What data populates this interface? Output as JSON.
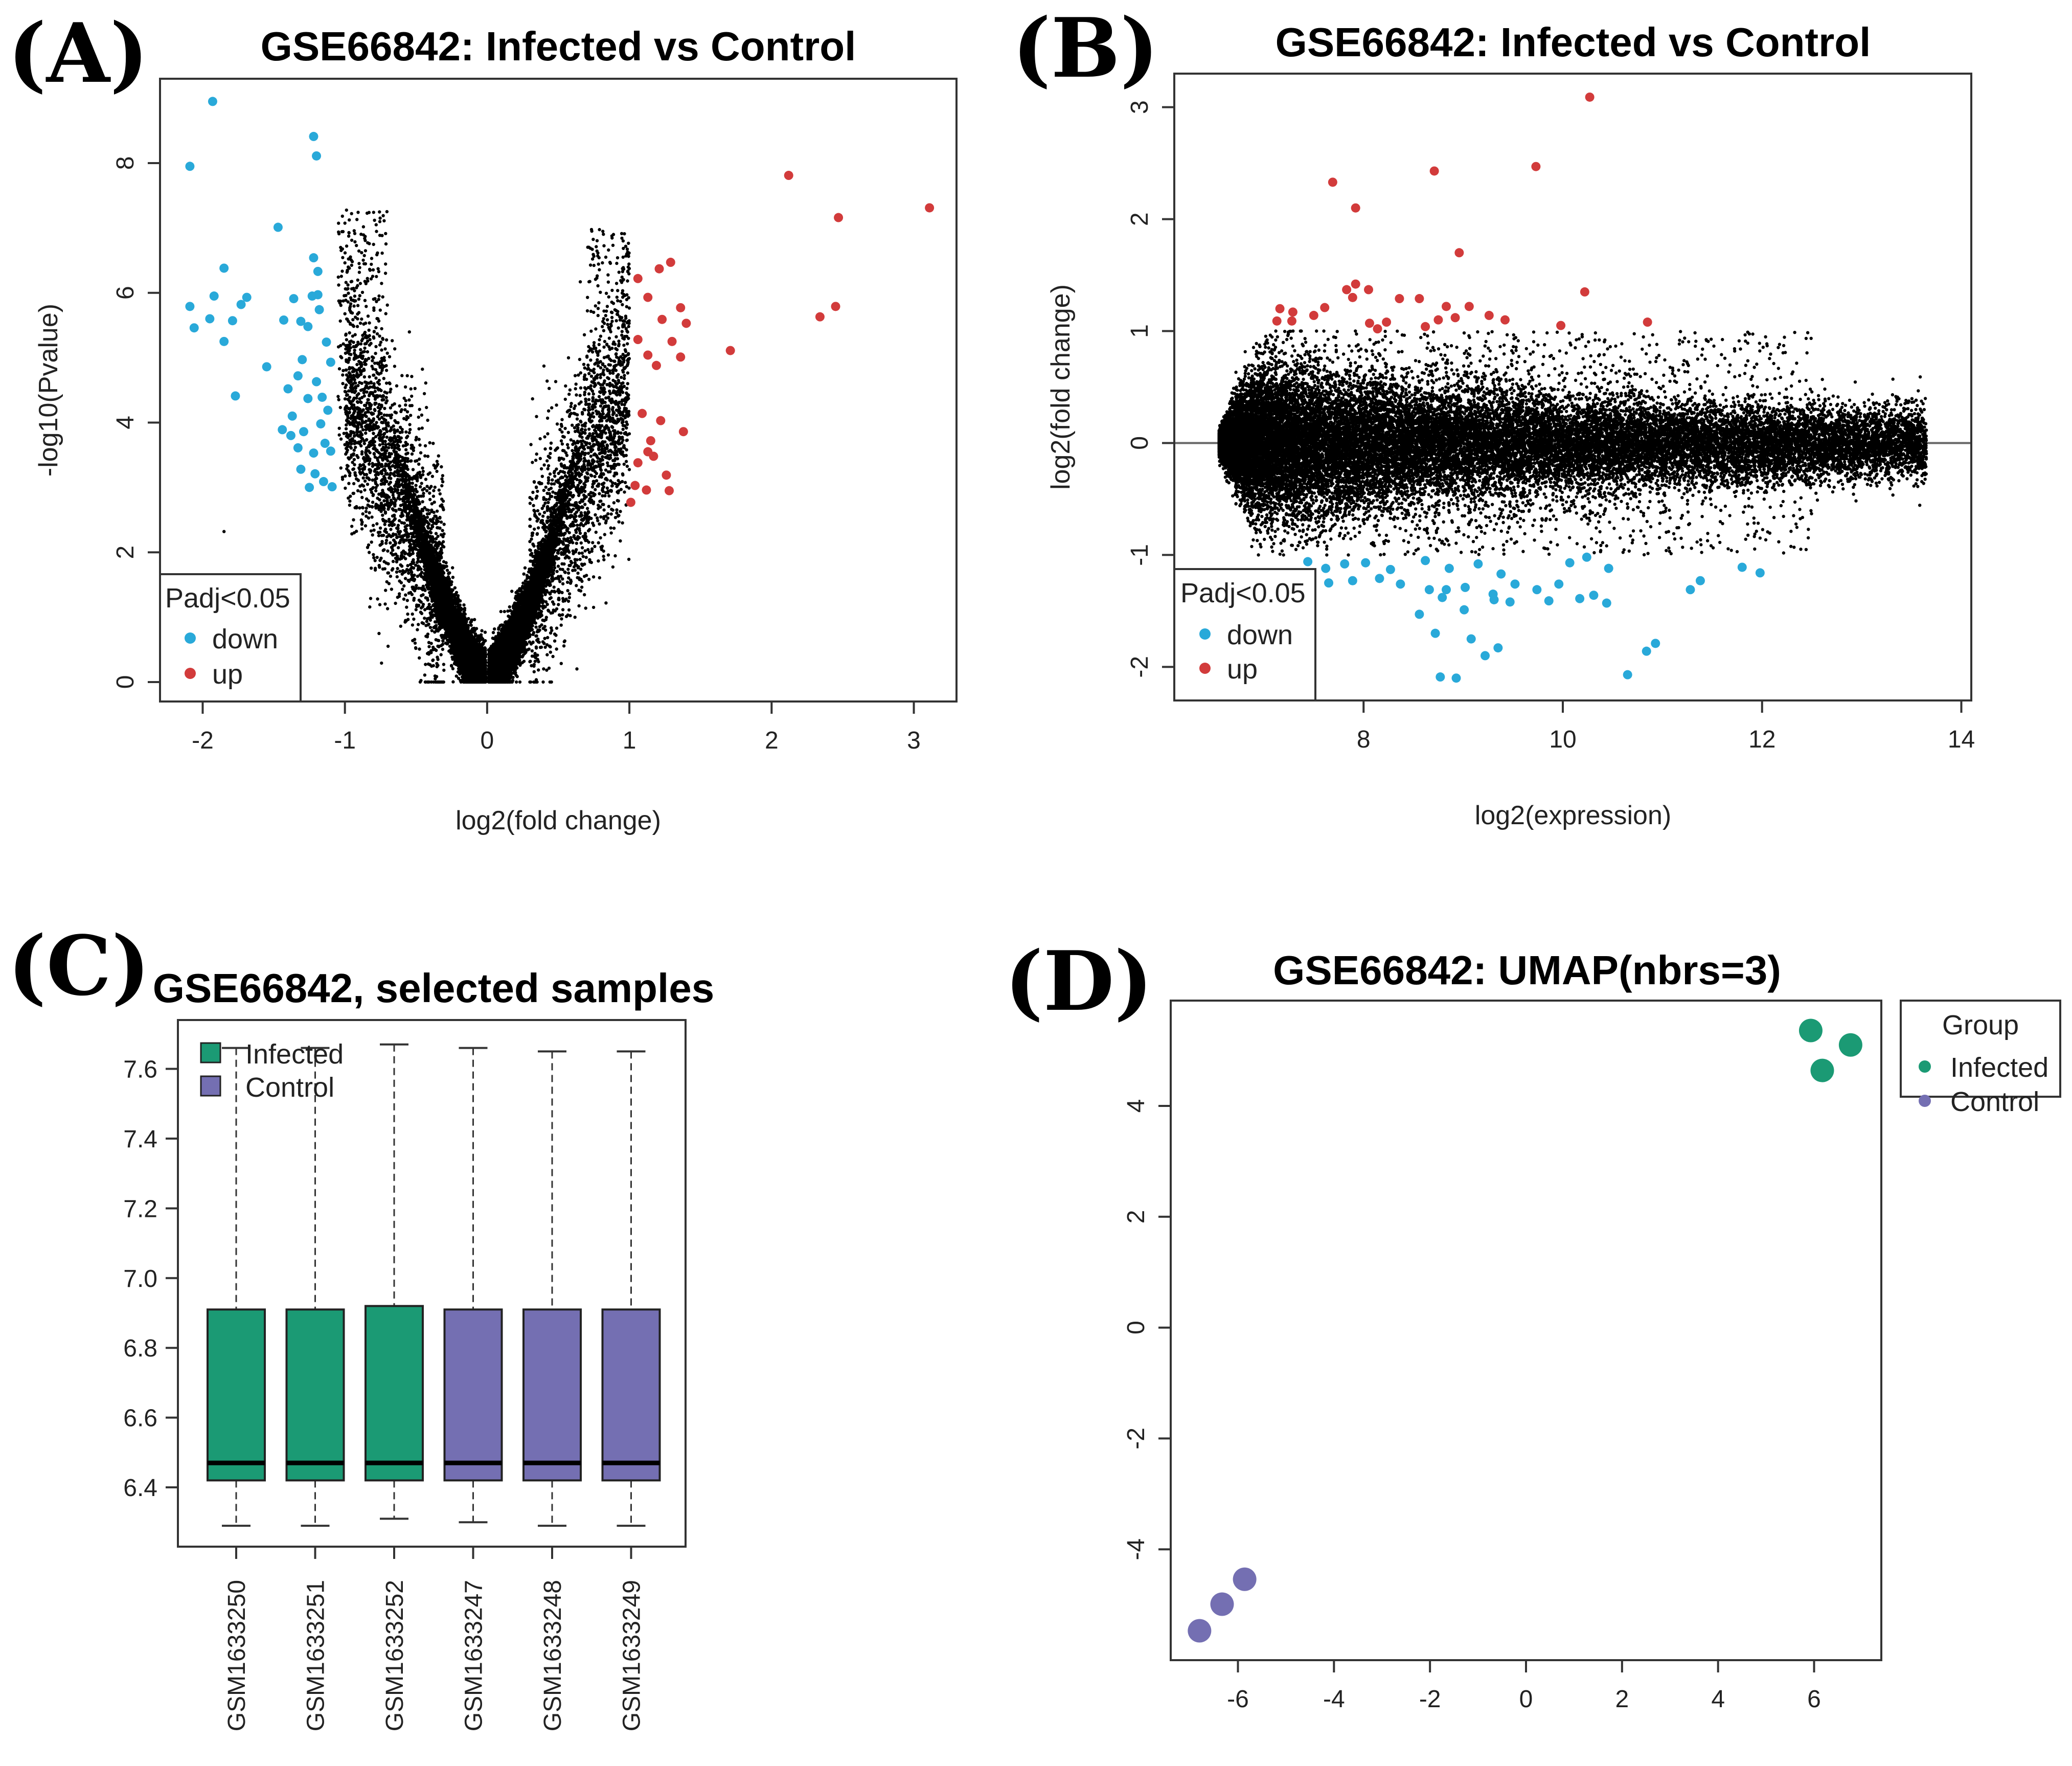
{
  "colors": {
    "down": "#29a9d9",
    "up": "#d23b3b",
    "neutral": "#000000",
    "infected": "#1b9a74",
    "control": "#746fb2"
  },
  "chart_data": [
    {
      "id": "A",
      "panel_label": "(A)",
      "type": "scatter",
      "subtype": "volcano",
      "title": "GSE66842: Infected vs Control",
      "xlabel": "log2(fold change)",
      "ylabel": "-log10(Pvalue)",
      "xlim": [
        -2.3,
        3.3
      ],
      "ylim": [
        -0.3,
        9.3
      ],
      "xticks": [
        -2,
        -1,
        0,
        1,
        2,
        3
      ],
      "yticks": [
        0,
        2,
        4,
        6,
        8
      ],
      "legend": {
        "title": "Padj<0.05",
        "entries": [
          "down",
          "up"
        ],
        "position": "bottom-left"
      },
      "series": [
        {
          "name": "down",
          "color_key": "down",
          "points": [
            [
              -1.93,
              8.95
            ],
            [
              -2.09,
              7.95
            ],
            [
              -1.22,
              8.41
            ],
            [
              -1.2,
              8.11
            ],
            [
              -1.47,
              7.01
            ],
            [
              -1.22,
              6.54
            ],
            [
              -1.19,
              6.33
            ],
            [
              -1.85,
              6.38
            ],
            [
              -1.92,
              5.95
            ],
            [
              -1.69,
              5.93
            ],
            [
              -1.95,
              5.6
            ],
            [
              -1.79,
              5.57
            ],
            [
              -2.09,
              5.79
            ],
            [
              -2.06,
              5.46
            ],
            [
              -1.73,
              5.82
            ],
            [
              -1.85,
              5.25
            ],
            [
              -1.77,
              4.41
            ],
            [
              -1.55,
              4.86
            ],
            [
              -1.43,
              5.58
            ],
            [
              -1.36,
              5.91
            ],
            [
              -1.31,
              5.56
            ],
            [
              -1.26,
              5.48
            ],
            [
              -1.23,
              5.95
            ],
            [
              -1.18,
              5.74
            ],
            [
              -1.13,
              5.24
            ],
            [
              -1.1,
              4.93
            ],
            [
              -1.4,
              4.52
            ],
            [
              -1.33,
              4.72
            ],
            [
              -1.3,
              4.97
            ],
            [
              -1.26,
              4.37
            ],
            [
              -1.2,
              4.63
            ],
            [
              -1.16,
              4.39
            ],
            [
              -1.12,
              4.19
            ],
            [
              -1.44,
              3.89
            ],
            [
              -1.38,
              3.8
            ],
            [
              -1.33,
              3.61
            ],
            [
              -1.29,
              3.86
            ],
            [
              -1.22,
              3.53
            ],
            [
              -1.17,
              3.98
            ],
            [
              -1.14,
              3.68
            ],
            [
              -1.1,
              3.56
            ],
            [
              -1.31,
              3.28
            ],
            [
              -1.21,
              3.21
            ],
            [
              -1.15,
              3.09
            ],
            [
              -1.09,
              3.01
            ],
            [
              -1.25,
              3.0
            ],
            [
              -1.19,
              5.97
            ],
            [
              -1.37,
              4.1
            ]
          ]
        },
        {
          "name": "up",
          "color_key": "up",
          "points": [
            [
              2.12,
              7.81
            ],
            [
              2.47,
              7.16
            ],
            [
              3.11,
              7.31
            ],
            [
              2.45,
              5.79
            ],
            [
              2.34,
              5.63
            ],
            [
              1.71,
              5.11
            ],
            [
              1.36,
              5.77
            ],
            [
              1.29,
              6.47
            ],
            [
              1.21,
              6.37
            ],
            [
              1.06,
              6.22
            ],
            [
              1.13,
              5.93
            ],
            [
              1.23,
              5.59
            ],
            [
              1.4,
              5.53
            ],
            [
              1.06,
              5.28
            ],
            [
              1.13,
              5.04
            ],
            [
              1.3,
              5.25
            ],
            [
              1.36,
              5.01
            ],
            [
              1.19,
              4.88
            ],
            [
              1.09,
              4.14
            ],
            [
              1.22,
              4.03
            ],
            [
              1.38,
              3.86
            ],
            [
              1.13,
              3.55
            ],
            [
              1.06,
              3.38
            ],
            [
              1.17,
              3.48
            ],
            [
              1.26,
              3.19
            ],
            [
              1.04,
              3.03
            ],
            [
              1.12,
              2.96
            ],
            [
              1.01,
              2.77
            ],
            [
              1.28,
              2.95
            ],
            [
              1.15,
              3.72
            ]
          ]
        }
      ]
    },
    {
      "id": "B",
      "panel_label": "(B)",
      "type": "scatter",
      "subtype": "MA plot",
      "title": "GSE66842: Infected vs Control",
      "xlabel": "log2(expression)",
      "ylabel": "log2(fold change)",
      "xlim": [
        6.1,
        14.1
      ],
      "ylim": [
        -2.3,
        3.3
      ],
      "xticks": [
        8,
        10,
        12,
        14
      ],
      "yticks": [
        -2,
        -1,
        0,
        1,
        2,
        3
      ],
      "hline": 0,
      "legend": {
        "title": "Padj<0.05",
        "entries": [
          "down",
          "up"
        ],
        "position": "bottom-left"
      },
      "series": [
        {
          "name": "up",
          "color_key": "up",
          "points": [
            [
              10.27,
              3.09
            ],
            [
              9.73,
              2.47
            ],
            [
              8.71,
              2.43
            ],
            [
              7.69,
              2.33
            ],
            [
              7.92,
              2.1
            ],
            [
              8.96,
              1.7
            ],
            [
              10.22,
              1.35
            ],
            [
              7.83,
              1.37
            ],
            [
              7.92,
              1.42
            ],
            [
              8.05,
              1.37
            ],
            [
              7.16,
              1.2
            ],
            [
              7.29,
              1.17
            ],
            [
              7.61,
              1.21
            ],
            [
              7.89,
              1.3
            ],
            [
              8.36,
              1.29
            ],
            [
              8.56,
              1.29
            ],
            [
              8.83,
              1.22
            ],
            [
              9.06,
              1.22
            ],
            [
              7.13,
              1.09
            ],
            [
              7.28,
              1.09
            ],
            [
              7.5,
              1.14
            ],
            [
              8.06,
              1.07
            ],
            [
              8.14,
              1.02
            ],
            [
              8.23,
              1.08
            ],
            [
              8.62,
              1.04
            ],
            [
              8.75,
              1.1
            ],
            [
              8.92,
              1.12
            ],
            [
              9.26,
              1.14
            ],
            [
              9.42,
              1.1
            ],
            [
              9.98,
              1.05
            ],
            [
              10.85,
              1.08
            ]
          ]
        },
        {
          "name": "down",
          "color_key": "down",
          "points": [
            [
              10.65,
              -2.07
            ],
            [
              8.77,
              -2.09
            ],
            [
              8.93,
              -2.1
            ],
            [
              10.84,
              -1.86
            ],
            [
              10.93,
              -1.79
            ],
            [
              9.22,
              -1.9
            ],
            [
              9.35,
              -1.83
            ],
            [
              9.08,
              -1.75
            ],
            [
              8.72,
              -1.7
            ],
            [
              8.56,
              -1.53
            ],
            [
              9.01,
              -1.49
            ],
            [
              9.47,
              -1.42
            ],
            [
              9.86,
              -1.41
            ],
            [
              10.17,
              -1.39
            ],
            [
              10.44,
              -1.43
            ],
            [
              11.28,
              -1.31
            ],
            [
              11.38,
              -1.23
            ],
            [
              11.8,
              -1.11
            ],
            [
              11.98,
              -1.16
            ],
            [
              7.65,
              -1.25
            ],
            [
              7.89,
              -1.23
            ],
            [
              8.16,
              -1.21
            ],
            [
              8.37,
              -1.26
            ],
            [
              8.66,
              -1.31
            ],
            [
              8.83,
              -1.31
            ],
            [
              9.02,
              -1.29
            ],
            [
              9.3,
              -1.35
            ],
            [
              9.52,
              -1.26
            ],
            [
              9.74,
              -1.31
            ],
            [
              9.96,
              -1.26
            ],
            [
              10.31,
              -1.36
            ],
            [
              7.44,
              -1.06
            ],
            [
              7.62,
              -1.12
            ],
            [
              7.81,
              -1.08
            ],
            [
              8.02,
              -1.07
            ],
            [
              8.27,
              -1.13
            ],
            [
              8.62,
              -1.05
            ],
            [
              8.86,
              -1.12
            ],
            [
              9.15,
              -1.08
            ],
            [
              9.38,
              -1.17
            ],
            [
              10.07,
              -1.07
            ],
            [
              10.24,
              -1.02
            ],
            [
              10.46,
              -1.12
            ],
            [
              8.79,
              -1.38
            ],
            [
              9.31,
              -1.4
            ]
          ]
        }
      ]
    },
    {
      "id": "C",
      "panel_label": "(C)",
      "type": "box",
      "title": "GSE66842, selected samples",
      "ylim": [
        6.23,
        7.74
      ],
      "yticks": [
        "6.4",
        "6.6",
        "6.8",
        "7.0",
        "7.2",
        "7.4",
        "7.6"
      ],
      "legend": {
        "entries": [
          "Infected",
          "Control"
        ],
        "position": "top-left"
      },
      "boxes": [
        {
          "sample": "GSM1633250",
          "group": "Infected",
          "whisker_low": 6.29,
          "q1": 6.42,
          "median": 6.47,
          "q3": 6.91,
          "whisker_high": 7.66
        },
        {
          "sample": "GSM1633251",
          "group": "Infected",
          "whisker_low": 6.29,
          "q1": 6.42,
          "median": 6.47,
          "q3": 6.91,
          "whisker_high": 7.66
        },
        {
          "sample": "GSM1633252",
          "group": "Infected",
          "whisker_low": 6.31,
          "q1": 6.42,
          "median": 6.47,
          "q3": 6.92,
          "whisker_high": 7.67
        },
        {
          "sample": "GSM1633247",
          "group": "Control",
          "whisker_low": 6.3,
          "q1": 6.42,
          "median": 6.47,
          "q3": 6.91,
          "whisker_high": 7.66
        },
        {
          "sample": "GSM1633248",
          "group": "Control",
          "whisker_low": 6.29,
          "q1": 6.42,
          "median": 6.47,
          "q3": 6.91,
          "whisker_high": 7.65
        },
        {
          "sample": "GSM1633249",
          "group": "Control",
          "whisker_low": 6.29,
          "q1": 6.42,
          "median": 6.47,
          "q3": 6.91,
          "whisker_high": 7.65
        }
      ]
    },
    {
      "id": "D",
      "panel_label": "(D)",
      "type": "scatter",
      "subtype": "UMAP",
      "title": "GSE66842: UMAP(nbrs=3)",
      "xlim": [
        -7.4,
        7.4
      ],
      "ylim": [
        -6.0,
        5.9
      ],
      "xticks": [
        -6,
        -4,
        -2,
        0,
        2,
        4,
        6
      ],
      "yticks": [
        -4,
        -2,
        0,
        2,
        4
      ],
      "legend": {
        "title": "Group",
        "entries": [
          "Infected",
          "Control"
        ],
        "position": "right"
      },
      "series": [
        {
          "name": "Infected",
          "color_key": "infected",
          "points": [
            [
              5.93,
              5.36
            ],
            [
              6.76,
              5.1
            ],
            [
              6.17,
              4.64
            ]
          ]
        },
        {
          "name": "Control",
          "color_key": "control",
          "points": [
            [
              -5.86,
              -4.54
            ],
            [
              -6.33,
              -4.99
            ],
            [
              -6.8,
              -5.47
            ]
          ]
        }
      ]
    }
  ]
}
